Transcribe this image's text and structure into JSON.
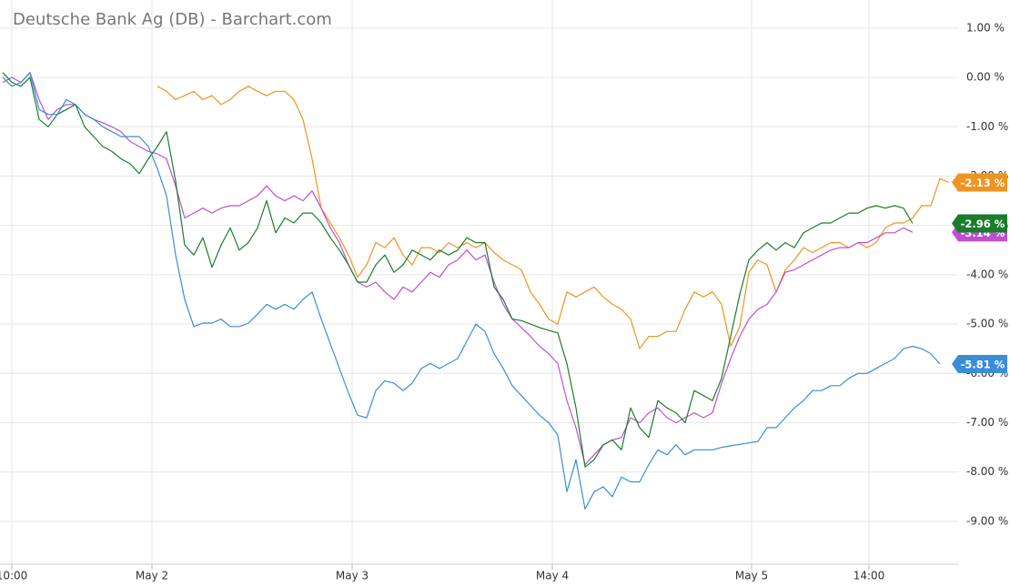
{
  "chart_data": {
    "type": "line",
    "title": "Deutsche Bank Ag (DB) - Barchart.com",
    "x": [
      0,
      1,
      2,
      3,
      4,
      5,
      6,
      7,
      8,
      9,
      10,
      11,
      12,
      13,
      14,
      15,
      16,
      17,
      18,
      19,
      20,
      21,
      22,
      23,
      24,
      25,
      26,
      27,
      28,
      29,
      30,
      31,
      32,
      33,
      34,
      35,
      36,
      37,
      38,
      39,
      40,
      41,
      42,
      43,
      44,
      45,
      46,
      47,
      48,
      49,
      50,
      51,
      52,
      53,
      54,
      55,
      56,
      57,
      58,
      59,
      60,
      61,
      62,
      63,
      64,
      65,
      66,
      67,
      68,
      69,
      70,
      71,
      72,
      73,
      74,
      75,
      76,
      77,
      78,
      79,
      80,
      81,
      82,
      83,
      84,
      85,
      86,
      87,
      88,
      89,
      90,
      91,
      92,
      93,
      94,
      95,
      96,
      97,
      98,
      99,
      100,
      101,
      102,
      103,
      104
    ],
    "xlim": [
      0,
      105
    ],
    "xticks": [
      {
        "value": 1,
        "label": "10:00"
      },
      {
        "value": 16.4,
        "label": "May 2"
      },
      {
        "value": 38.4,
        "label": "May 3"
      },
      {
        "value": 60.4,
        "label": "May 4"
      },
      {
        "value": 82.3,
        "label": "May 5"
      },
      {
        "value": 95.2,
        "label": "14:00"
      }
    ],
    "ylim": [
      -9.87,
      1.57
    ],
    "yticks": [
      {
        "value": 1,
        "label": "1.00 %"
      },
      {
        "value": 0,
        "label": "0.00 %"
      },
      {
        "value": -1,
        "label": "-1.00 %"
      },
      {
        "value": -2,
        "label": "-2.00 %"
      },
      {
        "value": -3,
        "label": "-3.00 %"
      },
      {
        "value": -4,
        "label": "-4.00 %"
      },
      {
        "value": -5,
        "label": "-5.00 %"
      },
      {
        "value": -6,
        "label": "-6.00 %"
      },
      {
        "value": -7,
        "label": "-7.00 %"
      },
      {
        "value": -8,
        "label": "-8.00 %"
      },
      {
        "value": -9,
        "label": "-9.00 %"
      }
    ],
    "grid": true,
    "series": [
      {
        "color": "#ee9422",
        "end_label": "-2.13 %",
        "values": [
          null,
          null,
          null,
          null,
          null,
          null,
          null,
          null,
          null,
          null,
          null,
          null,
          null,
          null,
          null,
          null,
          null,
          -0.18,
          -0.28,
          -0.45,
          -0.37,
          -0.28,
          -0.45,
          -0.37,
          -0.55,
          -0.45,
          -0.28,
          -0.18,
          -0.28,
          -0.37,
          -0.28,
          -0.28,
          -0.45,
          -0.85,
          -1.65,
          -2.65,
          -2.95,
          -3.25,
          -3.6,
          -4.05,
          -3.8,
          -3.35,
          -3.45,
          -3.25,
          -3.6,
          -3.8,
          -3.45,
          -3.45,
          -3.55,
          -3.35,
          -3.45,
          -3.35,
          -3.45,
          -3.35,
          -3.55,
          -3.7,
          -3.8,
          -3.9,
          -4.35,
          -4.6,
          -4.9,
          -5.0,
          -4.35,
          -4.45,
          -4.35,
          -4.25,
          -4.45,
          -4.6,
          -4.7,
          -4.9,
          -5.5,
          -5.25,
          -5.25,
          -5.15,
          -5.15,
          -4.7,
          -4.35,
          -4.45,
          -4.35,
          -4.6,
          -5.45,
          -5.05,
          -3.95,
          -3.7,
          -3.8,
          -4.35,
          -3.9,
          -3.7,
          -3.45,
          -3.55,
          -3.45,
          -3.35,
          -3.35,
          -3.45,
          -3.35,
          -3.45,
          -3.35,
          -3.05,
          -2.95,
          -2.95,
          -2.85,
          -2.6,
          -2.6,
          -2.05,
          -2.13
        ]
      },
      {
        "color": "#c04fd0",
        "end_label": "-3.14 %",
        "values": [
          -0.1,
          0,
          -0.1,
          0.1,
          -0.45,
          -0.85,
          -0.65,
          -0.55,
          -0.55,
          -0.75,
          -0.85,
          -0.92,
          -1.0,
          -1.1,
          -1.3,
          -1.4,
          -1.5,
          -1.55,
          -1.65,
          -2.2,
          -2.85,
          -2.75,
          -2.65,
          -2.75,
          -2.65,
          -2.6,
          -2.6,
          -2.5,
          -2.4,
          -2.2,
          -2.4,
          -2.5,
          -2.4,
          -2.5,
          -2.3,
          -2.65,
          -3.05,
          -3.35,
          -3.8,
          -4.15,
          -4.25,
          -4.15,
          -4.35,
          -4.5,
          -4.25,
          -4.35,
          -4.15,
          -3.95,
          -4.05,
          -3.8,
          -3.7,
          -3.5,
          -3.7,
          -3.6,
          -4.15,
          -4.6,
          -4.9,
          -5.07,
          -5.25,
          -5.45,
          -5.6,
          -5.8,
          -6.55,
          -7.1,
          -7.85,
          -7.65,
          -7.45,
          -7.35,
          -7.3,
          -6.9,
          -7.0,
          -6.8,
          -6.7,
          -6.9,
          -7.0,
          -6.9,
          -6.8,
          -6.9,
          -6.8,
          -6.2,
          -5.7,
          -5.25,
          -4.9,
          -4.7,
          -4.6,
          -4.35,
          -3.95,
          -3.9,
          -3.8,
          -3.7,
          -3.6,
          -3.5,
          -3.45,
          -3.45,
          -3.35,
          -3.35,
          -3.25,
          -3.15,
          -3.15,
          -3.05,
          -3.14,
          null,
          null,
          null,
          null
        ]
      },
      {
        "color": "#1b7d2c",
        "end_label": "-2.96 %",
        "values": [
          0.1,
          -0.1,
          -0.18,
          0,
          -0.85,
          -1.0,
          -0.75,
          -0.65,
          -0.55,
          -1.0,
          -1.2,
          -1.4,
          -1.5,
          -1.65,
          -1.75,
          -1.95,
          -1.65,
          -1.4,
          -1.1,
          -2.1,
          -3.4,
          -3.6,
          -3.25,
          -3.85,
          -3.4,
          -3.05,
          -3.5,
          -3.35,
          -3.05,
          -2.5,
          -3.15,
          -2.85,
          -2.95,
          -2.75,
          -2.75,
          -2.95,
          -3.25,
          -3.5,
          -3.8,
          -4.15,
          -4.15,
          -3.8,
          -3.6,
          -3.95,
          -3.8,
          -3.5,
          -3.6,
          -3.7,
          -3.5,
          -3.6,
          -3.5,
          -3.25,
          -3.35,
          -3.35,
          -4.25,
          -4.5,
          -4.9,
          -4.93,
          -5.0,
          -5.07,
          -5.13,
          -5.18,
          -5.8,
          -6.7,
          -7.9,
          -7.75,
          -7.45,
          -7.35,
          -7.55,
          -6.7,
          -7.1,
          -7.3,
          -6.55,
          -6.7,
          -6.8,
          -7.0,
          -6.35,
          -6.45,
          -6.55,
          -6.1,
          -5.25,
          -4.4,
          -3.7,
          -3.5,
          -3.35,
          -3.5,
          -3.35,
          -3.45,
          -3.15,
          -3.05,
          -2.95,
          -2.95,
          -2.85,
          -2.75,
          -2.75,
          -2.65,
          -2.6,
          -2.65,
          -2.6,
          -2.65,
          -2.96,
          null,
          null,
          null,
          null
        ]
      },
      {
        "color": "#3a8ed8",
        "end_label": "-5.81 %",
        "values": [
          0,
          -0.18,
          -0.1,
          0.1,
          -0.65,
          -0.75,
          -0.75,
          -0.45,
          -0.55,
          -0.75,
          -0.85,
          -1.0,
          -1.1,
          -1.2,
          -1.2,
          -1.2,
          -1.4,
          -1.85,
          -2.4,
          -3.6,
          -4.5,
          -5.05,
          -4.98,
          -4.98,
          -4.9,
          -5.05,
          -5.05,
          -4.98,
          -4.8,
          -4.6,
          -4.7,
          -4.6,
          -4.7,
          -4.5,
          -4.35,
          -4.9,
          -5.4,
          -5.9,
          -6.4,
          -6.85,
          -6.9,
          -6.35,
          -6.15,
          -6.2,
          -6.35,
          -6.2,
          -5.9,
          -5.8,
          -5.9,
          -5.8,
          -5.7,
          -5.35,
          -5.0,
          -5.15,
          -5.6,
          -5.9,
          -6.25,
          -6.45,
          -6.65,
          -6.85,
          -7.0,
          -7.25,
          -8.4,
          -7.75,
          -8.75,
          -8.4,
          -8.3,
          -8.5,
          -8.1,
          -8.2,
          -8.2,
          -7.85,
          -7.55,
          -7.65,
          -7.45,
          -7.65,
          -7.55,
          -7.55,
          -7.55,
          -7.5,
          -7.47,
          -7.44,
          -7.41,
          -7.38,
          -7.1,
          -7.1,
          -6.9,
          -6.7,
          -6.55,
          -6.35,
          -6.35,
          -6.25,
          -6.25,
          -6.1,
          -6.0,
          -6.0,
          -5.9,
          -5.8,
          -5.7,
          -5.5,
          -5.45,
          -5.5,
          -5.6,
          -5.81,
          null
        ]
      }
    ]
  }
}
